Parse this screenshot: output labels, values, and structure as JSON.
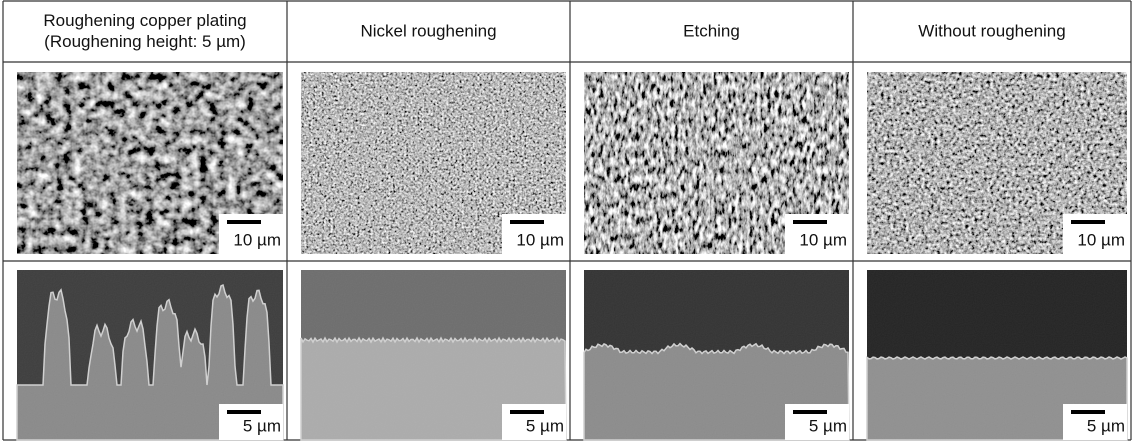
{
  "table": {
    "headers": [
      [
        "Roughening copper plating",
        "(Roughening height: 5 µm)"
      ],
      [
        "Nickel roughening"
      ],
      [
        "Etching"
      ],
      [
        "Without roughening"
      ]
    ],
    "rows": [
      [
        "10 µm",
        "10 µm",
        "10 µm",
        "10 µm"
      ],
      [
        "5 µm",
        "5 µm",
        "5 µm",
        "5 µm"
      ]
    ]
  }
}
